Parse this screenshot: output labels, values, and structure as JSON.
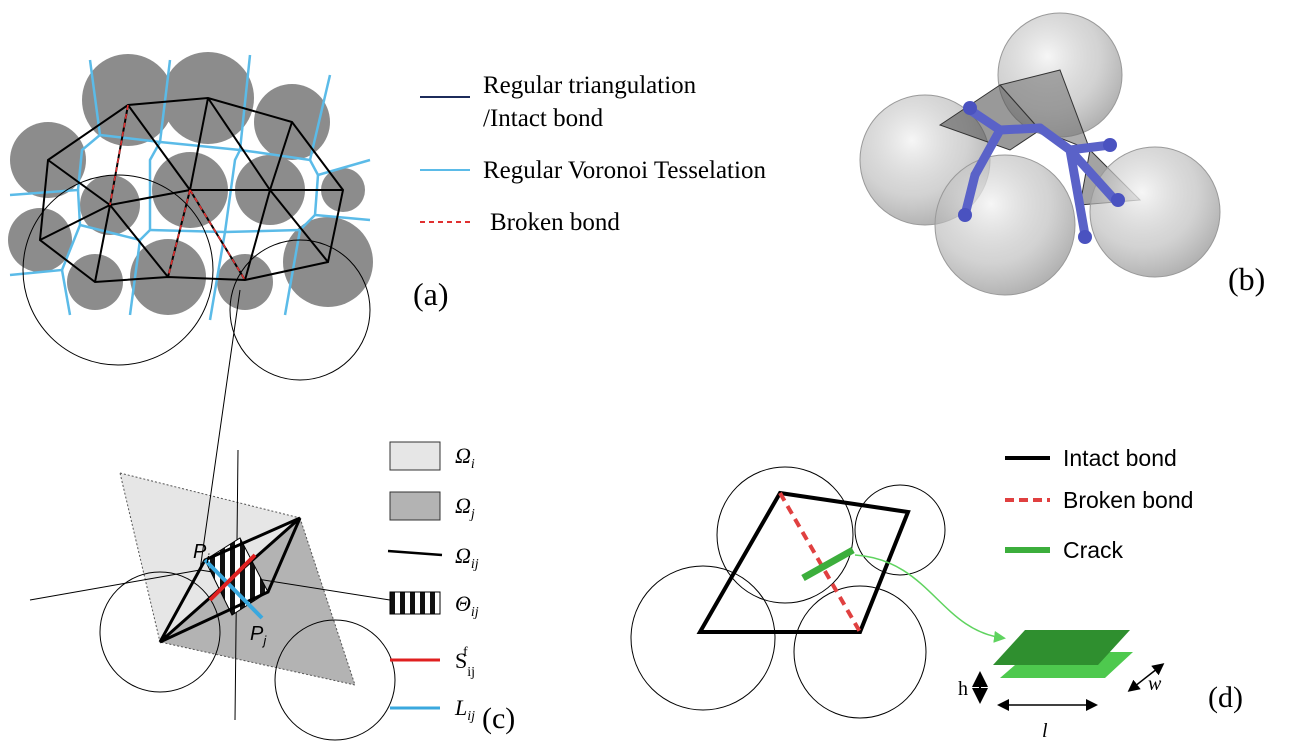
{
  "panels": {
    "a": {
      "label": "(a)",
      "legend": [
        {
          "lines": [
            "Regular triangulation",
            "/Intact bond"
          ]
        },
        {
          "lines": [
            "Regular Voronoi  Tesselation"
          ]
        },
        {
          "lines": [
            "Broken bond"
          ]
        }
      ]
    },
    "b": {
      "label": "(b)"
    },
    "c": {
      "label": "(c)",
      "points": [
        {
          "symbol": "P",
          "sub": "i"
        },
        {
          "symbol": "P",
          "sub": "j"
        }
      ],
      "legend": [
        {
          "symbol": "Ω",
          "sub": "i"
        },
        {
          "symbol": "Ω",
          "sub": "j"
        },
        {
          "symbol": "Ω",
          "sub": "ij"
        },
        {
          "symbol": "Θ",
          "sub": "ij"
        },
        {
          "symbol": "S",
          "sub": "ij",
          "sup": "f"
        },
        {
          "symbol": "L",
          "sub": "ij"
        }
      ]
    },
    "d": {
      "label": "(d)",
      "legend": [
        "Intact bond",
        "Broken  bond",
        "Crack"
      ],
      "dimensions": [
        "h",
        "w",
        "l"
      ]
    }
  }
}
